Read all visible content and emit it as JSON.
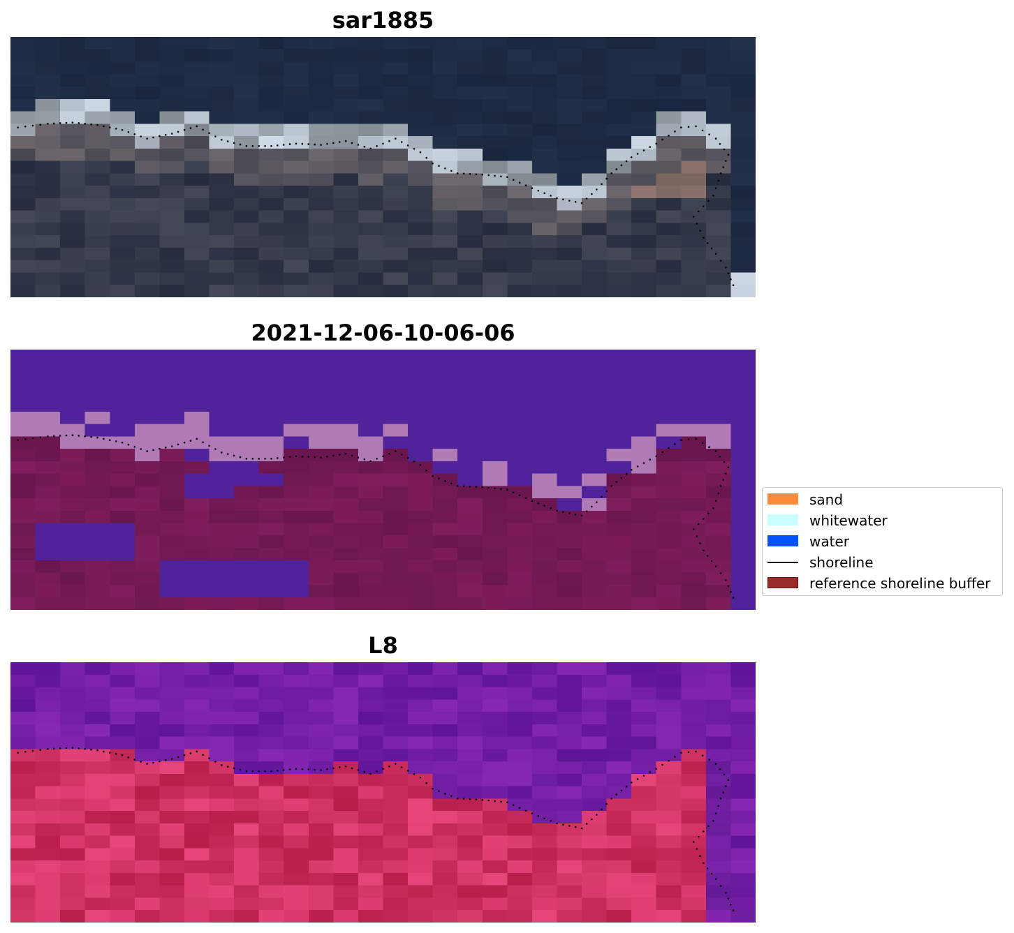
{
  "panels": [
    {
      "title": "sar1885",
      "kind": "rgb"
    },
    {
      "title": "2021-12-06-10-06-06",
      "kind": "classified"
    },
    {
      "title": "L8",
      "kind": "falsecolor"
    }
  ],
  "legend": {
    "items": [
      {
        "label": "sand",
        "color": "#ff8c3a"
      },
      {
        "label": "whitewater",
        "color": "#c8ffff"
      },
      {
        "label": "water",
        "color": "#0055ff"
      },
      {
        "label": "shoreline",
        "color": "#000000"
      },
      {
        "label": "reference shoreline buffer",
        "color": "#9b2a2a",
        "edge": "#6a1010"
      }
    ]
  },
  "colors": {
    "water_class": "#51239b",
    "whitewater_class": "#b07ab6",
    "buffer_class": "#6b164e",
    "shoreline_dots": "#000000"
  }
}
